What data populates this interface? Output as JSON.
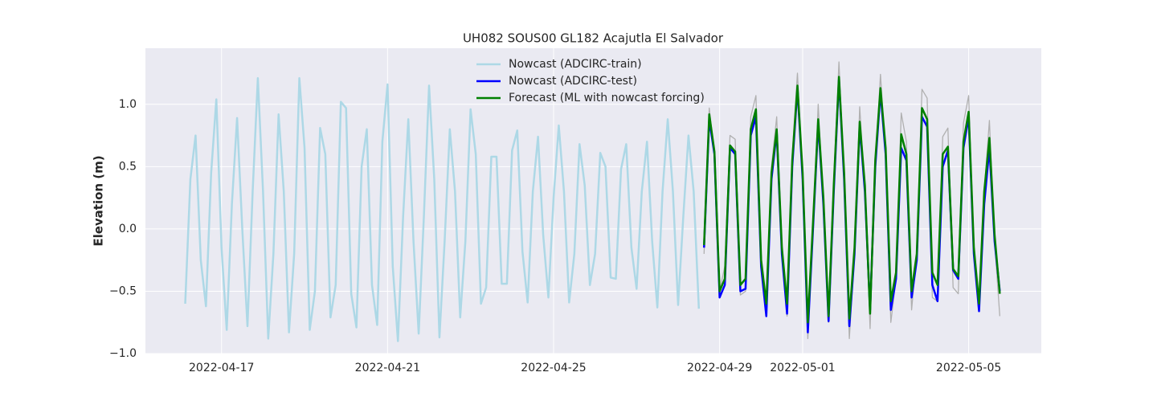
{
  "chart_data": {
    "type": "line",
    "title": "UH082 SOUS00 GL182 Acajutla El Salvador",
    "ylabel": "Elevation (m)",
    "ylim": [
      -1.0,
      1.45
    ],
    "yticks": [
      {
        "value": -1.0,
        "label": "−1.0"
      },
      {
        "value": -0.5,
        "label": "−0.5"
      },
      {
        "value": 0.0,
        "label": "0.0"
      },
      {
        "value": 0.5,
        "label": "0.5"
      },
      {
        "value": 1.0,
        "label": "1.0"
      }
    ],
    "xlim": [
      "2022-04-15T04:00",
      "2022-05-06T18:00"
    ],
    "xticks": [
      "2022-04-17",
      "2022-04-21",
      "2022-04-25",
      "2022-04-29",
      "2022-05-01",
      "2022-05-05"
    ],
    "grid": true,
    "legend": "upper center",
    "series": [
      {
        "color": "#b0b0b0",
        "x": [
          "2022-04-28T15:00",
          "2022-04-28T18:00",
          "2022-04-28T21:00",
          "2022-04-29T00:00",
          "2022-04-29T03:00",
          "2022-04-29T06:00",
          "2022-04-29T09:00",
          "2022-04-29T12:00",
          "2022-04-29T15:00",
          "2022-04-29T18:00",
          "2022-04-29T21:00",
          "2022-04-30T00:00",
          "2022-04-30T03:00",
          "2022-04-30T06:00",
          "2022-04-30T09:00",
          "2022-04-30T12:00",
          "2022-04-30T15:00",
          "2022-04-30T18:00",
          "2022-04-30T21:00",
          "2022-05-01T00:00",
          "2022-05-01T03:00",
          "2022-05-01T06:00",
          "2022-05-01T09:00",
          "2022-05-01T12:00",
          "2022-05-01T15:00",
          "2022-05-01T18:00",
          "2022-05-01T21:00",
          "2022-05-02T00:00",
          "2022-05-02T03:00",
          "2022-05-02T06:00",
          "2022-05-02T09:00",
          "2022-05-02T12:00",
          "2022-05-02T15:00",
          "2022-05-02T18:00",
          "2022-05-02T21:00",
          "2022-05-03T00:00",
          "2022-05-03T03:00",
          "2022-05-03T06:00",
          "2022-05-03T09:00",
          "2022-05-03T12:00",
          "2022-05-03T15:00",
          "2022-05-03T18:00",
          "2022-05-03T21:00",
          "2022-05-04T00:00",
          "2022-05-04T03:00",
          "2022-05-04T06:00",
          "2022-05-04T09:00",
          "2022-05-04T12:00",
          "2022-05-04T15:00",
          "2022-05-04T18:00",
          "2022-05-04T21:00",
          "2022-05-05T00:00",
          "2022-05-05T03:00",
          "2022-05-05T06:00",
          "2022-05-05T09:00",
          "2022-05-05T12:00",
          "2022-05-05T15:00",
          "2022-05-05T18:00"
        ],
        "values": [
          -0.2,
          0.97,
          0.6,
          -0.5,
          -0.3,
          0.75,
          0.72,
          -0.53,
          -0.5,
          0.9,
          1.07,
          -0.3,
          -0.68,
          0.5,
          0.9,
          -0.2,
          -0.7,
          0.6,
          1.25,
          0.4,
          -0.88,
          0.0,
          1.0,
          0.2,
          -0.75,
          0.4,
          1.34,
          0.4,
          -0.88,
          -0.2,
          0.98,
          0.3,
          -0.8,
          0.5,
          1.24,
          0.6,
          -0.75,
          -0.4,
          0.93,
          0.7,
          -0.65,
          -0.2,
          1.12,
          1.05,
          -0.55,
          -0.58,
          0.74,
          0.81,
          -0.47,
          -0.52,
          0.85,
          1.07,
          -0.2,
          -0.66,
          0.3,
          0.87,
          -0.1,
          -0.7
        ]
      },
      {
        "name": "Nowcast (ADCIRC-train)",
        "color": "#add8e6",
        "x": [
          "2022-04-16T03:00",
          "2022-04-16T06:00",
          "2022-04-16T09:00",
          "2022-04-16T12:00",
          "2022-04-16T15:00",
          "2022-04-16T18:00",
          "2022-04-16T21:00",
          "2022-04-17T00:00",
          "2022-04-17T03:00",
          "2022-04-17T06:00",
          "2022-04-17T09:00",
          "2022-04-17T12:00",
          "2022-04-17T15:00",
          "2022-04-17T18:00",
          "2022-04-17T21:00",
          "2022-04-18T00:00",
          "2022-04-18T03:00",
          "2022-04-18T06:00",
          "2022-04-18T09:00",
          "2022-04-18T12:00",
          "2022-04-18T15:00",
          "2022-04-18T18:00",
          "2022-04-18T21:00",
          "2022-04-19T00:00",
          "2022-04-19T03:00",
          "2022-04-19T06:00",
          "2022-04-19T09:00",
          "2022-04-19T12:00",
          "2022-04-19T15:00",
          "2022-04-19T18:00",
          "2022-04-19T21:00",
          "2022-04-20T00:00",
          "2022-04-20T03:00",
          "2022-04-20T06:00",
          "2022-04-20T09:00",
          "2022-04-20T12:00",
          "2022-04-20T15:00",
          "2022-04-20T18:00",
          "2022-04-20T21:00",
          "2022-04-21T00:00",
          "2022-04-21T03:00",
          "2022-04-21T06:00",
          "2022-04-21T09:00",
          "2022-04-21T12:00",
          "2022-04-21T15:00",
          "2022-04-21T18:00",
          "2022-04-21T21:00",
          "2022-04-22T00:00",
          "2022-04-22T03:00",
          "2022-04-22T06:00",
          "2022-04-22T09:00",
          "2022-04-22T12:00",
          "2022-04-22T15:00",
          "2022-04-22T18:00",
          "2022-04-22T21:00",
          "2022-04-23T00:00",
          "2022-04-23T03:00",
          "2022-04-23T06:00",
          "2022-04-23T09:00",
          "2022-04-23T12:00",
          "2022-04-23T15:00",
          "2022-04-23T18:00",
          "2022-04-23T21:00",
          "2022-04-24T00:00",
          "2022-04-24T03:00",
          "2022-04-24T06:00",
          "2022-04-24T09:00",
          "2022-04-24T12:00",
          "2022-04-24T15:00",
          "2022-04-24T18:00",
          "2022-04-24T21:00",
          "2022-04-25T00:00",
          "2022-04-25T03:00",
          "2022-04-25T06:00",
          "2022-04-25T09:00",
          "2022-04-25T12:00",
          "2022-04-25T15:00",
          "2022-04-25T18:00",
          "2022-04-25T21:00",
          "2022-04-26T00:00",
          "2022-04-26T03:00",
          "2022-04-26T06:00",
          "2022-04-26T09:00",
          "2022-04-26T12:00",
          "2022-04-26T15:00",
          "2022-04-26T18:00",
          "2022-04-26T21:00",
          "2022-04-27T00:00",
          "2022-04-27T03:00",
          "2022-04-27T06:00",
          "2022-04-27T09:00",
          "2022-04-27T12:00",
          "2022-04-27T15:00",
          "2022-04-27T18:00",
          "2022-04-27T21:00",
          "2022-04-28T00:00",
          "2022-04-28T03:00",
          "2022-04-28T06:00",
          "2022-04-28T09:00",
          "2022-04-28T12:00"
        ],
        "values": [
          -0.6,
          0.4,
          0.75,
          -0.25,
          -0.62,
          0.45,
          1.04,
          -0.15,
          -0.81,
          0.2,
          0.89,
          0.0,
          -0.78,
          0.3,
          1.21,
          0.3,
          -0.88,
          -0.2,
          0.92,
          0.3,
          -0.83,
          -0.2,
          1.21,
          0.65,
          -0.81,
          -0.5,
          0.81,
          0.6,
          -0.71,
          -0.45,
          1.02,
          0.97,
          -0.52,
          -0.79,
          0.5,
          0.8,
          -0.45,
          -0.77,
          0.7,
          1.16,
          -0.3,
          -0.9,
          0.1,
          0.88,
          -0.1,
          -0.84,
          0.1,
          1.15,
          0.4,
          -0.87,
          -0.1,
          0.8,
          0.3,
          -0.71,
          -0.1,
          0.96,
          0.6,
          -0.6,
          -0.47,
          0.58,
          0.58,
          -0.44,
          -0.44,
          0.63,
          0.79,
          -0.18,
          -0.59,
          0.3,
          0.74,
          -0.05,
          -0.55,
          0.25,
          0.83,
          0.3,
          -0.59,
          -0.2,
          0.68,
          0.35,
          -0.45,
          -0.2,
          0.61,
          0.5,
          -0.39,
          -0.4,
          0.48,
          0.68,
          -0.15,
          -0.48,
          0.3,
          0.7,
          -0.1,
          -0.63,
          0.3,
          0.88,
          0.3,
          -0.61,
          0.1,
          0.75,
          0.3,
          -0.64
        ]
      },
      {
        "name": "Nowcast (ADCIRC-test)",
        "color": "#0000ff",
        "x": [
          "2022-04-28T15:00",
          "2022-04-28T18:00",
          "2022-04-28T21:00",
          "2022-04-29T00:00",
          "2022-04-29T03:00",
          "2022-04-29T06:00",
          "2022-04-29T09:00",
          "2022-04-29T12:00",
          "2022-04-29T15:00",
          "2022-04-29T18:00",
          "2022-04-29T21:00",
          "2022-04-30T00:00",
          "2022-04-30T03:00",
          "2022-04-30T06:00",
          "2022-04-30T09:00",
          "2022-04-30T12:00",
          "2022-04-30T15:00",
          "2022-04-30T18:00",
          "2022-04-30T21:00",
          "2022-05-01T00:00",
          "2022-05-01T03:00",
          "2022-05-01T06:00",
          "2022-05-01T09:00",
          "2022-05-01T12:00",
          "2022-05-01T15:00",
          "2022-05-01T18:00",
          "2022-05-01T21:00",
          "2022-05-02T00:00",
          "2022-05-02T03:00",
          "2022-05-02T06:00",
          "2022-05-02T09:00",
          "2022-05-02T12:00",
          "2022-05-02T15:00",
          "2022-05-02T18:00",
          "2022-05-02T21:00",
          "2022-05-03T00:00",
          "2022-05-03T03:00",
          "2022-05-03T06:00",
          "2022-05-03T09:00",
          "2022-05-03T12:00",
          "2022-05-03T15:00",
          "2022-05-03T18:00",
          "2022-05-03T21:00",
          "2022-05-04T00:00",
          "2022-05-04T03:00",
          "2022-05-04T06:00",
          "2022-05-04T09:00",
          "2022-05-04T12:00",
          "2022-05-04T15:00",
          "2022-05-04T18:00",
          "2022-05-04T21:00",
          "2022-05-05T00:00",
          "2022-05-05T03:00",
          "2022-05-05T06:00",
          "2022-05-05T09:00",
          "2022-05-05T12:00",
          "2022-05-05T15:00",
          "2022-05-05T18:00"
        ],
        "values": [
          -0.15,
          0.88,
          0.6,
          -0.55,
          -0.45,
          0.65,
          0.6,
          -0.5,
          -0.48,
          0.75,
          0.9,
          -0.3,
          -0.7,
          0.4,
          0.78,
          -0.2,
          -0.68,
          0.5,
          1.13,
          0.4,
          -0.83,
          0.0,
          0.85,
          0.2,
          -0.74,
          0.3,
          1.2,
          0.4,
          -0.78,
          -0.2,
          0.83,
          0.3,
          -0.65,
          0.5,
          1.1,
          0.6,
          -0.65,
          -0.4,
          0.65,
          0.55,
          -0.55,
          -0.25,
          0.9,
          0.82,
          -0.45,
          -0.58,
          0.5,
          0.63,
          -0.33,
          -0.4,
          0.65,
          0.9,
          -0.2,
          -0.66,
          0.2,
          0.65,
          -0.1,
          -0.5
        ]
      },
      {
        "name": "Forecast (ML with nowcast forcing)",
        "color": "#008000",
        "x": [
          "2022-04-28T15:00",
          "2022-04-28T18:00",
          "2022-04-28T21:00",
          "2022-04-29T00:00",
          "2022-04-29T03:00",
          "2022-04-29T06:00",
          "2022-04-29T09:00",
          "2022-04-29T12:00",
          "2022-04-29T15:00",
          "2022-04-29T18:00",
          "2022-04-29T21:00",
          "2022-04-30T00:00",
          "2022-04-30T03:00",
          "2022-04-30T06:00",
          "2022-04-30T09:00",
          "2022-04-30T12:00",
          "2022-04-30T15:00",
          "2022-04-30T18:00",
          "2022-04-30T21:00",
          "2022-05-01T00:00",
          "2022-05-01T03:00",
          "2022-05-01T06:00",
          "2022-05-01T09:00",
          "2022-05-01T12:00",
          "2022-05-01T15:00",
          "2022-05-01T18:00",
          "2022-05-01T21:00",
          "2022-05-02T00:00",
          "2022-05-02T03:00",
          "2022-05-02T06:00",
          "2022-05-02T09:00",
          "2022-05-02T12:00",
          "2022-05-02T15:00",
          "2022-05-02T18:00",
          "2022-05-02T21:00",
          "2022-05-03T00:00",
          "2022-05-03T03:00",
          "2022-05-03T06:00",
          "2022-05-03T09:00",
          "2022-05-03T12:00",
          "2022-05-03T15:00",
          "2022-05-03T18:00",
          "2022-05-03T21:00",
          "2022-05-04T00:00",
          "2022-05-04T03:00",
          "2022-05-04T06:00",
          "2022-05-04T09:00",
          "2022-05-04T12:00",
          "2022-05-04T15:00",
          "2022-05-04T18:00",
          "2022-05-04T21:00",
          "2022-05-05T00:00",
          "2022-05-05T03:00",
          "2022-05-05T06:00",
          "2022-05-05T09:00",
          "2022-05-05T12:00",
          "2022-05-05T15:00",
          "2022-05-05T18:00"
        ],
        "values": [
          -0.13,
          0.92,
          0.62,
          -0.5,
          -0.4,
          0.67,
          0.62,
          -0.45,
          -0.4,
          0.8,
          0.96,
          -0.25,
          -0.6,
          0.45,
          0.8,
          -0.15,
          -0.6,
          0.55,
          1.15,
          0.45,
          -0.75,
          0.05,
          0.88,
          0.25,
          -0.7,
          0.35,
          1.22,
          0.45,
          -0.72,
          -0.15,
          0.86,
          0.35,
          -0.68,
          0.55,
          1.13,
          0.65,
          -0.58,
          -0.35,
          0.76,
          0.6,
          -0.5,
          -0.2,
          0.97,
          0.88,
          -0.35,
          -0.45,
          0.6,
          0.66,
          -0.32,
          -0.38,
          0.7,
          0.94,
          -0.15,
          -0.6,
          0.3,
          0.73,
          -0.05,
          -0.52
        ]
      }
    ]
  }
}
